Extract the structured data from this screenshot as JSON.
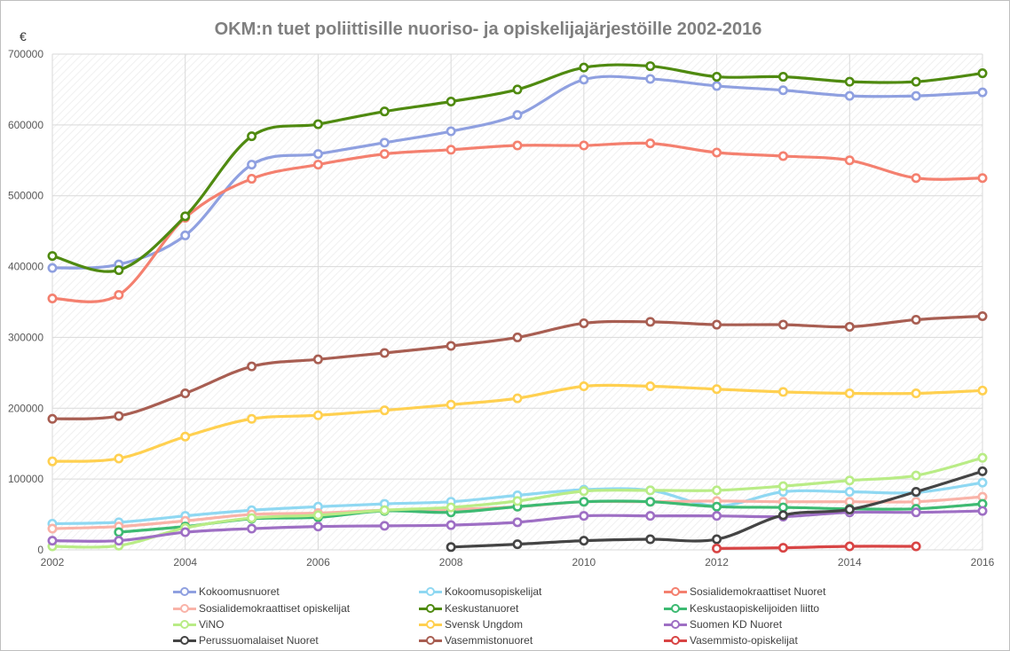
{
  "chart_data": {
    "type": "line",
    "title": "OKM:n tuet poliittisille nuoriso- ja opiskelijajärjestöille 2002-2016",
    "ylabel": "€",
    "xlabel": "",
    "xlim": [
      2002,
      2016
    ],
    "ylim": [
      0,
      700000
    ],
    "yticks": [
      "0",
      "100000",
      "200000",
      "300000",
      "400000",
      "500000",
      "600000",
      "700000"
    ],
    "xticks": [
      "2002",
      "2004",
      "2006",
      "2008",
      "2010",
      "2012",
      "2014",
      "2016"
    ],
    "grid": true,
    "smooth": true,
    "legend_position": "bottom",
    "x": [
      2002,
      2003,
      2004,
      2005,
      2006,
      2007,
      2008,
      2009,
      2010,
      2011,
      2012,
      2013,
      2014,
      2015,
      2016
    ],
    "series": [
      {
        "name": "Kokoomusnuoret",
        "color": "#8fa0e0",
        "values": [
          398000,
          403000,
          444000,
          544000,
          559000,
          575000,
          591000,
          614000,
          664000,
          665000,
          655000,
          649000,
          641000,
          641000,
          646000
        ]
      },
      {
        "name": "Kokoomusopiskelijat",
        "color": "#8fd8f2",
        "values": [
          37000,
          39000,
          48000,
          56000,
          61000,
          65000,
          68000,
          77000,
          85000,
          84000,
          62000,
          82000,
          82000,
          81000,
          95000
        ]
      },
      {
        "name": "Sosialidemokraattiset Nuoret",
        "color": "#f4806f",
        "values": [
          355000,
          360000,
          469000,
          524000,
          544000,
          559000,
          565000,
          571000,
          571000,
          574000,
          561000,
          556000,
          550000,
          525000,
          525000
        ]
      },
      {
        "name": "Sosialidemokraattiset opiskelijat",
        "color": "#f9b3a8",
        "values": [
          30000,
          33000,
          41000,
          50000,
          52000,
          56000,
          57000,
          61000,
          68000,
          68000,
          69000,
          68000,
          68000,
          68000,
          75000
        ]
      },
      {
        "name": "Keskustanuoret",
        "color": "#4f8a10",
        "values": [
          415000,
          395000,
          471000,
          584000,
          601000,
          619000,
          633000,
          650000,
          681000,
          683000,
          668000,
          668000,
          661000,
          661000,
          673000
        ]
      },
      {
        "name": "Keskustaopiskelijoiden liitto",
        "color": "#3dba72",
        "values": [
          null,
          25000,
          33000,
          44000,
          46000,
          55000,
          53000,
          61000,
          68000,
          68000,
          61000,
          60000,
          58000,
          58000,
          65000
        ]
      },
      {
        "name": "ViNO",
        "color": "#b9ec86",
        "values": [
          5000,
          6000,
          31000,
          45000,
          49000,
          56000,
          60000,
          69000,
          83000,
          84000,
          84000,
          90000,
          98000,
          105000,
          130000
        ]
      },
      {
        "name": "Svensk Ungdom",
        "color": "#ffd050",
        "values": [
          125000,
          129000,
          160000,
          185000,
          190000,
          197000,
          205000,
          214000,
          231000,
          231000,
          227000,
          223000,
          221000,
          221000,
          225000
        ]
      },
      {
        "name": "Suomen KD Nuoret",
        "color": "#9e6fc4",
        "values": [
          13000,
          13000,
          25000,
          30000,
          33000,
          34000,
          35000,
          39000,
          48000,
          48000,
          48000,
          47000,
          53000,
          53000,
          55000
        ]
      },
      {
        "name": "Perussuomalaiset Nuoret",
        "color": "#444444",
        "values": [
          null,
          null,
          null,
          null,
          null,
          null,
          4000,
          8000,
          13000,
          15000,
          15000,
          49000,
          57000,
          82000,
          111000
        ]
      },
      {
        "name": "Vasemmistonuoret",
        "color": "#a85e52",
        "values": [
          185000,
          189000,
          221000,
          259000,
          269000,
          278000,
          288000,
          300000,
          320000,
          322000,
          318000,
          318000,
          315000,
          325000,
          330000
        ]
      },
      {
        "name": "Vasemmisto-opiskelijat",
        "color": "#d84444",
        "values": [
          null,
          null,
          null,
          null,
          null,
          null,
          null,
          null,
          null,
          null,
          2000,
          3000,
          5000,
          5000,
          null
        ]
      }
    ]
  }
}
